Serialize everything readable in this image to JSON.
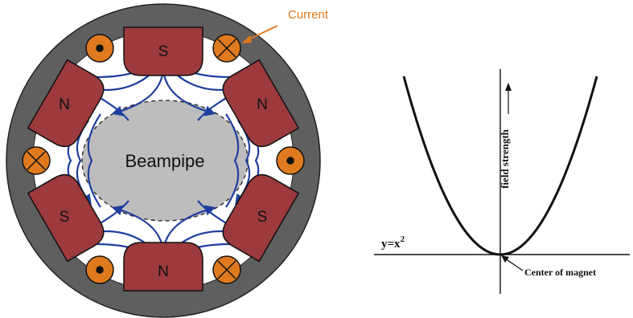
{
  "magnet": {
    "current_label": "Current",
    "beampipe_label": "Beampipe",
    "poles": [
      {
        "id": "top",
        "label": "S"
      },
      {
        "id": "upper-right",
        "label": "N"
      },
      {
        "id": "lower-right",
        "label": "S"
      },
      {
        "id": "bottom",
        "label": "N"
      },
      {
        "id": "lower-left",
        "label": "S"
      },
      {
        "id": "upper-left",
        "label": "N"
      }
    ],
    "conductors": [
      {
        "id": "top-left",
        "direction": "out"
      },
      {
        "id": "top-right",
        "direction": "in"
      },
      {
        "id": "right",
        "direction": "out"
      },
      {
        "id": "bottom-right",
        "direction": "in"
      },
      {
        "id": "bottom-left",
        "direction": "out"
      },
      {
        "id": "left",
        "direction": "in"
      }
    ],
    "colors": {
      "yoke": "#5f5f5f",
      "pole": "#9c3a3e",
      "conductor": "#e07a1f",
      "field_lines": "#1f3f9f",
      "beampipe": "#bdbdbd",
      "current_label": "#e07a1f"
    }
  },
  "graph": {
    "curve_label": "y=x",
    "curve_label_exp": "2",
    "y_axis_label": "field strength",
    "center_label": "Center of magnet"
  },
  "chart_data": {
    "type": "line",
    "series": [
      {
        "name": "y=x²",
        "function": "x^2"
      }
    ],
    "ylabel": "field strength",
    "annotations": [
      "Center of magnet"
    ],
    "grid": false
  }
}
